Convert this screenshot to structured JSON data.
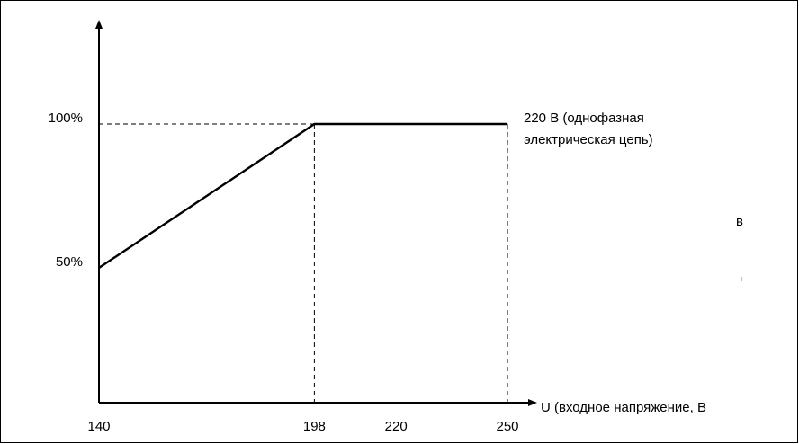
{
  "chart_data": {
    "type": "line",
    "series": [
      {
        "x": [
          140,
          198,
          250
        ],
        "y": [
          50,
          100,
          100
        ]
      }
    ],
    "x_ticks": [
      "140",
      "198",
      "220",
      "250"
    ],
    "x_tick_values": [
      140,
      198,
      220,
      250
    ],
    "y_ticks": [
      "50%",
      "100%"
    ],
    "y_tick_values": [
      50,
      100
    ],
    "xlabel": "U (входное напряжение, В",
    "annotation_lines": [
      "220 В (однофазная",
      "электрическая цепь)"
    ],
    "edge_glyph": "в",
    "xlim": [
      140,
      250
    ],
    "ylim": [
      0,
      125
    ],
    "grid": false
  }
}
